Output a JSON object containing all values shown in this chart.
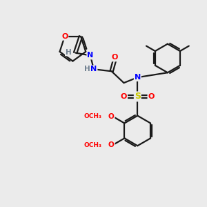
{
  "background_color": "#ebebeb",
  "bond_color": "#1a1a1a",
  "atom_colors": {
    "O": "#ff0000",
    "N": "#0000ff",
    "S": "#cccc00",
    "C": "#1a1a1a",
    "H": "#708090"
  },
  "figsize": [
    3.0,
    3.0
  ],
  "dpi": 100,
  "lw": 1.6
}
